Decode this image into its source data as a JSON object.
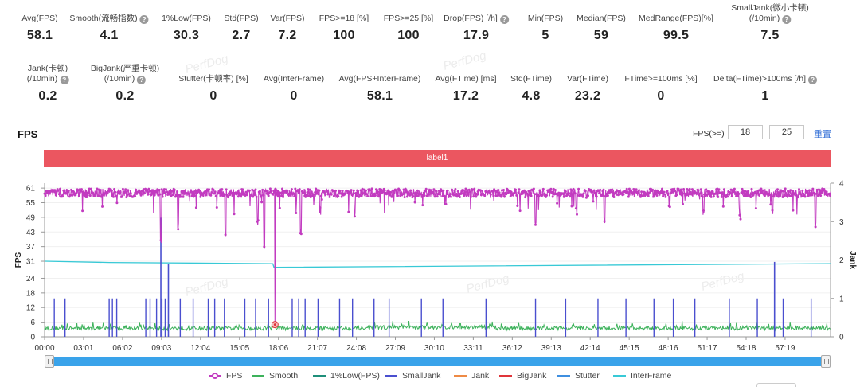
{
  "stats_row1": [
    {
      "l1": "Avg(FPS)",
      "l2": "",
      "value": "58.1",
      "help": false,
      "x": 50
    },
    {
      "l1": "Smooth(",
      "l1b": "",
      "full": "Smooth(流畅指数)",
      "l2": "",
      "value": "4.1",
      "help": true,
      "x": 137
    },
    {
      "l1": "1%Low(FPS)",
      "l2": "",
      "value": "30.3",
      "help": false,
      "x": 234
    },
    {
      "l1": "Std(FPS)",
      "l2": "",
      "value": "2.7",
      "help": false,
      "x": 303
    },
    {
      "l1": "Var(FPS)",
      "l2": "",
      "value": "7.2",
      "help": false,
      "x": 361
    },
    {
      "l1": "FPS>=18 [%]",
      "l2": "",
      "value": "100",
      "help": false,
      "x": 432
    },
    {
      "l1": "FPS>=25 [%]",
      "l2": "",
      "value": "100",
      "help": false,
      "x": 513
    },
    {
      "l1": "Drop(FPS) [/h]",
      "l2": "",
      "value": "17.9",
      "help": true,
      "x": 598
    },
    {
      "l1": "Min(FPS)",
      "l2": "",
      "value": "5",
      "help": false,
      "x": 685
    },
    {
      "l1": "Median(FPS)",
      "l2": "",
      "value": "59",
      "help": false,
      "x": 755
    },
    {
      "l1": "MedRange(FPS)[%]",
      "l2": "",
      "value": "99.5",
      "help": false,
      "x": 849
    },
    {
      "l1": "SmallJank(微小卡顿)",
      "l2": "(/10min)",
      "value": "7.5",
      "help": true,
      "x": 967
    }
  ],
  "stats_row2": [
    {
      "l1": "Jank(卡顿)",
      "l2": "(/10min)",
      "value": "0.2",
      "help": true,
      "x": 60
    },
    {
      "l1": "BigJank(严重卡顿)",
      "l2": "(/10min)",
      "value": "0.2",
      "help": true,
      "x": 157
    },
    {
      "l1": "Stutter(卡顿率) [%]",
      "l2": "",
      "value": "0",
      "help": false,
      "x": 268
    },
    {
      "l1": "Avg(InterFrame)",
      "l2": "",
      "value": "0",
      "help": false,
      "x": 369
    },
    {
      "l1": "Avg(FPS+InterFrame)",
      "l2": "",
      "value": "58.1",
      "help": false,
      "x": 477
    },
    {
      "l1": "Avg(FTime) [ms]",
      "l2": "",
      "value": "17.2",
      "help": false,
      "x": 585
    },
    {
      "l1": "Std(FTime)",
      "l2": "",
      "value": "4.8",
      "help": false,
      "x": 667
    },
    {
      "l1": "Var(FTime)",
      "l2": "",
      "value": "23.2",
      "help": false,
      "x": 738
    },
    {
      "l1": "FTime>=100ms [%]",
      "l2": "",
      "value": "0",
      "help": false,
      "x": 830
    },
    {
      "l1": "Delta(FTime)>100ms [/h]",
      "l2": "",
      "value": "1",
      "help": true,
      "x": 961
    }
  ],
  "watermark": "PerfDog",
  "fps_section": {
    "title": "FPS",
    "threshold_label": "FPS(>=)",
    "threshold_1": "18",
    "threshold_2": "25",
    "reset_label": "重置"
  },
  "label_bar": "label1",
  "legend": [
    {
      "name": "FPS",
      "color": "#c23bc0",
      "marker": true
    },
    {
      "name": "Smooth",
      "color": "#3db25b",
      "marker": false
    },
    {
      "name": "1%Low(FPS)",
      "color": "#1f8f7a",
      "marker": false
    },
    {
      "name": "SmallJank",
      "color": "#4a4fcf",
      "marker": false
    },
    {
      "name": "Jank",
      "color": "#ee8a45",
      "marker": false
    },
    {
      "name": "BigJank",
      "color": "#e0353a",
      "marker": false
    },
    {
      "name": "Stutter",
      "color": "#3f8fe0",
      "marker": false
    },
    {
      "name": "InterFrame",
      "color": "#38c9d6",
      "marker": false
    }
  ],
  "chart_data": {
    "type": "line",
    "title": "",
    "ylabel": "FPS",
    "y2label": "Jank",
    "ylim": [
      0,
      63
    ],
    "y2lim": [
      0,
      4
    ],
    "yticks": [
      0,
      6,
      12,
      18,
      24,
      31,
      37,
      43,
      49,
      55,
      61
    ],
    "y2ticks": [
      0,
      1,
      2,
      3,
      4
    ],
    "xlim_seconds": [
      0,
      3650
    ],
    "xticks": [
      "00:00",
      "03:01",
      "06:02",
      "09:03",
      "12:04",
      "15:05",
      "18:06",
      "21:07",
      "24:08",
      "27:09",
      "30:10",
      "33:11",
      "36:12",
      "39:13",
      "42:14",
      "45:15",
      "48:16",
      "51:17",
      "54:18",
      "57:19"
    ],
    "series": [
      {
        "name": "FPS",
        "color": "#c23bc0",
        "baseline": 59,
        "dips": [
          [
            540,
            38
          ],
          [
            620,
            44
          ],
          [
            840,
            40
          ],
          [
            990,
            45
          ],
          [
            1020,
            36
          ],
          [
            1190,
            42
          ],
          [
            1280,
            50
          ],
          [
            1440,
            49
          ],
          [
            2280,
            44
          ],
          [
            2470,
            50
          ],
          [
            2600,
            46
          ],
          [
            3060,
            50
          ],
          [
            3230,
            48
          ],
          [
            3380,
            50
          ],
          [
            3580,
            44
          ]
        ],
        "spike_min": {
          "t": 1070,
          "value": 5
        }
      },
      {
        "name": "Smooth",
        "color": "#3db25b",
        "baseline": 3.5,
        "range": [
          2.5,
          6.5
        ]
      },
      {
        "name": "1%Low(FPS)",
        "color": "#38c9d6",
        "values_t": [
          [
            0,
            31
          ],
          [
            300,
            30.5
          ],
          [
            1060,
            30
          ],
          [
            1065,
            28.5
          ],
          [
            3650,
            30
          ]
        ]
      },
      {
        "name": "SmallJank",
        "color": "#4a4fcf",
        "axis": "right",
        "events_t": [
          45,
          95,
          300,
          315,
          335,
          470,
          490,
          520,
          545,
          560,
          630,
          690,
          760,
          790,
          835,
          930,
          980,
          1040,
          1150,
          1180,
          1210,
          1270,
          1370,
          1430,
          1530,
          1600,
          1750,
          1850,
          2050,
          2280,
          2420,
          2570,
          2700,
          2830,
          2920,
          3020,
          3180,
          3310,
          3430,
          3560
        ],
        "event_value": 1,
        "tall_events": [
          {
            "t": 540,
            "value": 3.1
          },
          {
            "t": 575,
            "value": 1.9
          },
          {
            "t": 3390,
            "value": 1.95
          }
        ]
      }
    ]
  }
}
